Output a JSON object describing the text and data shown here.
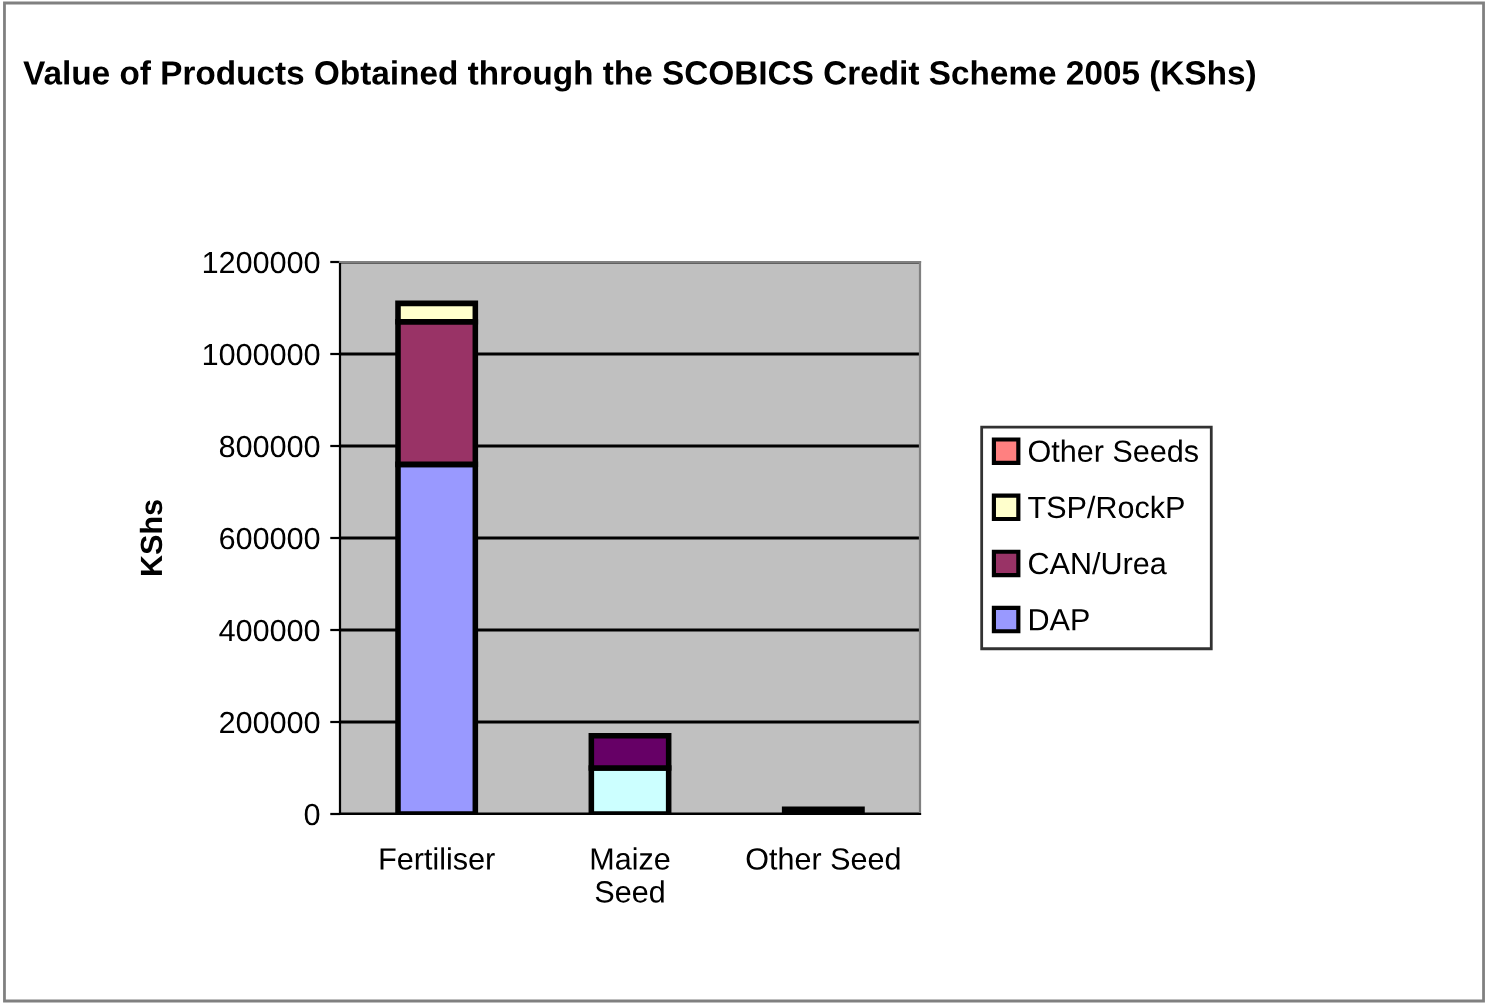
{
  "chart_data": {
    "type": "bar",
    "stacked": true,
    "title": "Value of Products Obtained through the SCOBICS Credit Scheme 2005 (KShs)",
    "ylabel": "KShs",
    "categories": [
      "Fertiliser",
      "Maize\nSeed",
      "Other Seed"
    ],
    "series": [
      {
        "name": "DAP",
        "color": "#9999ff",
        "values": [
          760000,
          null,
          null
        ]
      },
      {
        "name": "CAN/Urea",
        "color": "#993366",
        "values": [
          310000,
          null,
          null
        ]
      },
      {
        "name": "TSP/RockP",
        "color": "#ffffcc",
        "values": [
          40000,
          null,
          null
        ]
      },
      {
        "color": "#ccffff",
        "values": [
          null,
          100000,
          null
        ]
      },
      {
        "color": "#660066",
        "values": [
          null,
          70000,
          null
        ]
      },
      {
        "name": "Other Seeds",
        "color": "#ff8080",
        "values": [
          null,
          null,
          10000
        ]
      }
    ],
    "ylim": [
      0,
      1200000
    ],
    "yticks": [
      0,
      200000,
      400000,
      600000,
      800000,
      1000000,
      1200000
    ],
    "grid": "y",
    "legend": "right"
  }
}
